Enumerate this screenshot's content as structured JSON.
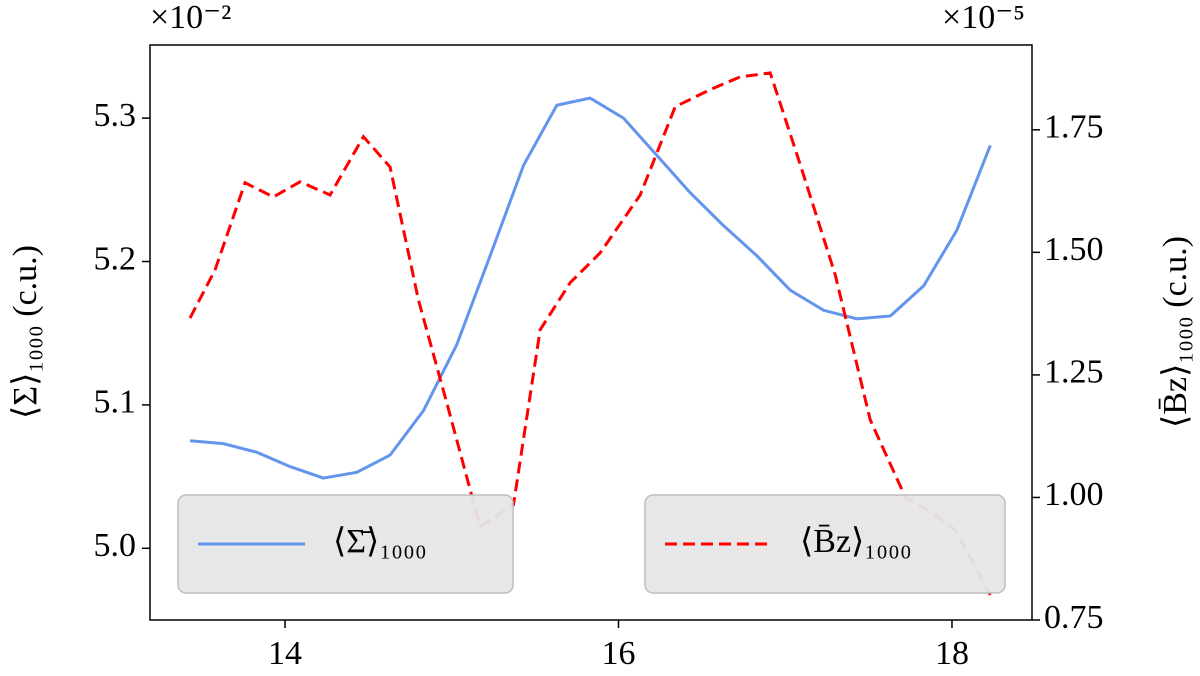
{
  "chart_data": {
    "type": "line",
    "xlim": [
      13.19,
      18.48
    ],
    "xticks": [
      14,
      16,
      18
    ],
    "ylim": [
      4.95,
      5.351
    ],
    "yticks": [
      5.0,
      5.1,
      5.2,
      5.3
    ],
    "yticks_labels": [
      "5.0",
      "5.1",
      "5.2",
      "5.3"
    ],
    "y_offset_label": "×10⁻²",
    "y2lim": [
      0.75,
      1.923
    ],
    "y2ticks": [
      0.75,
      1.0,
      1.25,
      1.5,
      1.75
    ],
    "y2ticks_labels": [
      "0.75",
      "1.00",
      "1.25",
      "1.50",
      "1.75"
    ],
    "y2_offset_label": "×10⁻⁵",
    "ylabel": "⟨Σ⟩₁₀₀₀ (c.u.)",
    "y2label": "⟨B̄z⟩₁₀₀₀ (c.u.)",
    "series": [
      {
        "name": "⟨Σ̄⟩₁₀₀₀",
        "color": "#6495ed",
        "linestyle": "solid",
        "axis": "y",
        "legend": "lower left",
        "x": [
          13.43,
          13.63,
          13.83,
          14.03,
          14.23,
          14.43,
          14.63,
          14.83,
          15.03,
          15.23,
          15.43,
          15.63,
          15.83,
          16.03,
          16.23,
          16.43,
          16.63,
          16.83,
          17.03,
          17.23,
          17.43,
          17.63,
          17.83,
          18.03,
          18.23
        ],
        "values": [
          5.075,
          5.073,
          5.067,
          5.057,
          5.049,
          5.053,
          5.065,
          5.096,
          5.142,
          5.204,
          5.267,
          5.309,
          5.314,
          5.3,
          5.274,
          5.248,
          5.225,
          5.204,
          5.18,
          5.166,
          5.16,
          5.162,
          5.183,
          5.222,
          5.281
        ]
      },
      {
        "name": "⟨B̄z⟩₁₀₀₀",
        "color": "#ff0000",
        "linestyle": "dashed",
        "axis": "y2",
        "legend": "lower right",
        "x": [
          13.43,
          13.58,
          13.76,
          13.93,
          14.09,
          14.27,
          14.47,
          14.63,
          14.8,
          14.97,
          15.17,
          15.37,
          15.53,
          15.71,
          15.89,
          16.13,
          16.34,
          16.55,
          16.73,
          16.91,
          17.09,
          17.3,
          17.51,
          17.72,
          17.9,
          18.02,
          18.23
        ],
        "values": [
          1.366,
          1.464,
          1.642,
          1.613,
          1.644,
          1.617,
          1.736,
          1.674,
          1.403,
          1.193,
          0.94,
          0.985,
          1.342,
          1.438,
          1.499,
          1.617,
          1.797,
          1.832,
          1.858,
          1.866,
          1.679,
          1.454,
          1.158,
          1.001,
          0.964,
          0.934,
          0.801
        ]
      }
    ]
  }
}
